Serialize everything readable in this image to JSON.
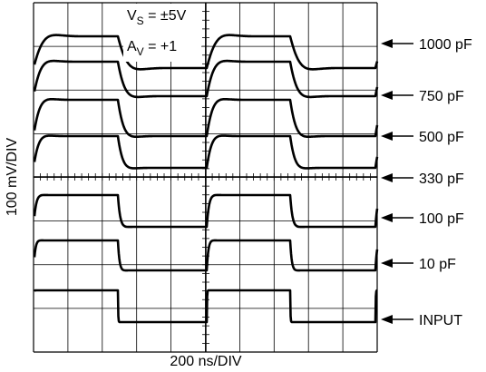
{
  "annotations": {
    "supply": {
      "symbol": "V",
      "subscript": "S",
      "text": " = ±5V"
    },
    "gain": {
      "symbol": "A",
      "subscript": "V",
      "text": " = +1"
    }
  },
  "traces": [
    {
      "label": "1000 pF"
    },
    {
      "label": "750 pF"
    },
    {
      "label": "500 pF"
    },
    {
      "label": "330 pF"
    },
    {
      "label": "100 pF"
    },
    {
      "label": "10 pF"
    },
    {
      "label": "INPUT"
    }
  ],
  "axis_labels": {
    "y": "100 mV/DIV",
    "x": "200 ns/DIV"
  }
}
